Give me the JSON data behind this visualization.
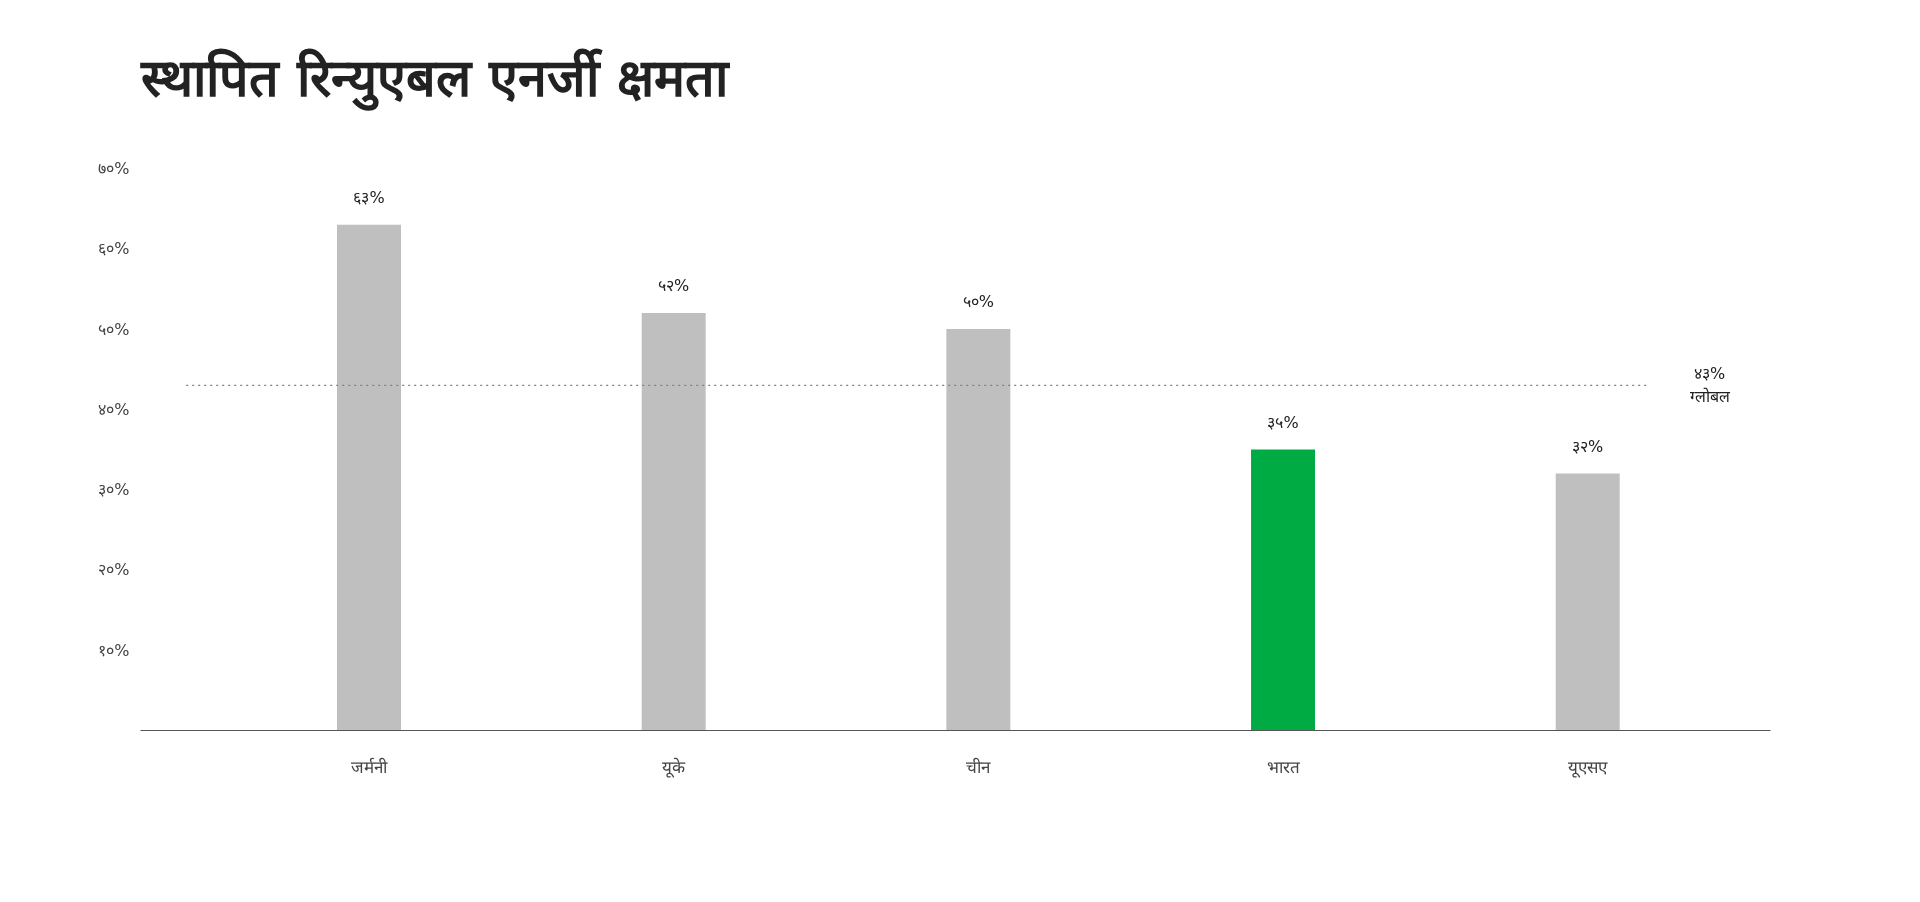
{
  "chart_data": {
    "type": "bar",
    "title": "स्थापित रिन्युएबल एनर्जी क्षमता",
    "categories": [
      "जर्मनी",
      "यूके",
      "चीन",
      "भारत",
      "यूएसए"
    ],
    "values": [
      63,
      52,
      50,
      35,
      32
    ],
    "colors": [
      "#bfbfbf",
      "#bfbfbf",
      "#bfbfbf",
      "#00ab44",
      "#bfbfbf"
    ],
    "value_labels": [
      "६३%",
      "५२%",
      "५०%",
      "३५%",
      "३२%"
    ],
    "ylim": [
      0,
      70
    ],
    "yticks": [
      {
        "value": 10,
        "label": "१०%"
      },
      {
        "value": 20,
        "label": "२०%"
      },
      {
        "value": 30,
        "label": "३०%"
      },
      {
        "value": 40,
        "label": "४०%"
      },
      {
        "value": 50,
        "label": "५०%"
      },
      {
        "value": 60,
        "label": "६०%"
      },
      {
        "value": 70,
        "label": "७०%"
      }
    ],
    "ref_lines": [
      {
        "axis": "y",
        "value": 43,
        "label": "४३% ग्लोबल",
        "color": "#808080",
        "line_style": "dotted"
      }
    ],
    "grid": false
  }
}
